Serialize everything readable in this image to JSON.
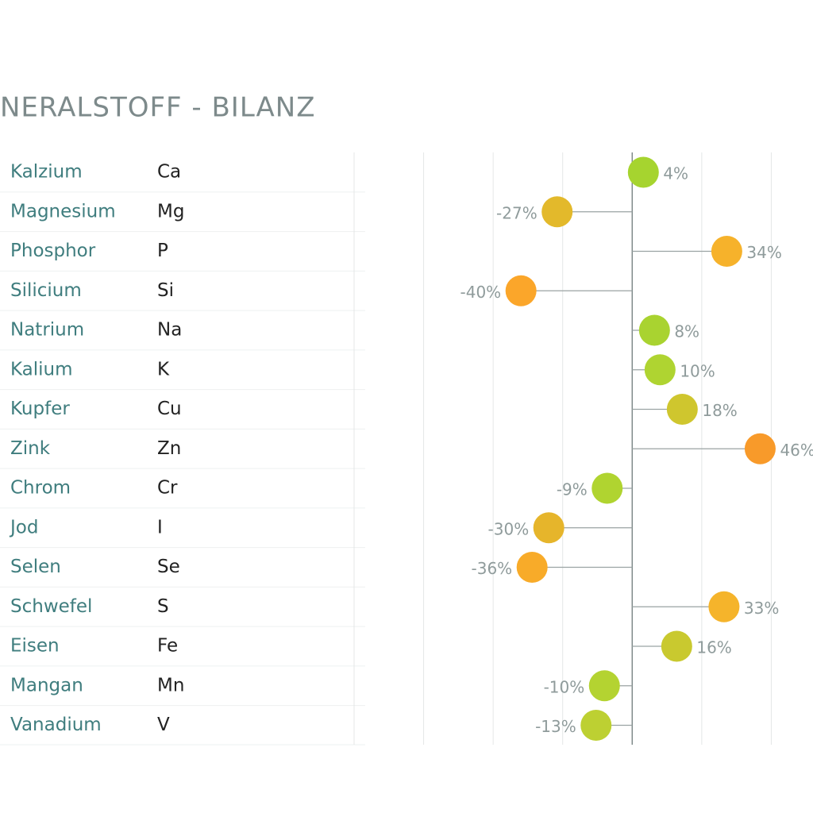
{
  "chart_data": {
    "type": "lollipop",
    "title": "NERALSTOFF - BILANZ",
    "categories": [
      "Kalzium",
      "Magnesium",
      "Phosphor",
      "Silicium",
      "Natrium",
      "Kalium",
      "Kupfer",
      "Zink",
      "Chrom",
      "Jod",
      "Selen",
      "Schwefel",
      "Eisen",
      "Mangan",
      "Vanadium"
    ],
    "symbols": [
      "Ca",
      "Mg",
      "P",
      "Si",
      "Na",
      "K",
      "Cu",
      "Zn",
      "Cr",
      "I",
      "Se",
      "S",
      "Fe",
      "Mn",
      "V"
    ],
    "values": [
      4,
      -27,
      34,
      -40,
      8,
      10,
      18,
      46,
      -9,
      -30,
      -36,
      33,
      16,
      -10,
      -13
    ],
    "value_labels": [
      "4%",
      "-27%",
      "34%",
      "-40%",
      "8%",
      "10%",
      "18%",
      "46%",
      "-9%",
      "-30%",
      "-36%",
      "33%",
      "16%",
      "-10%",
      "-13%"
    ],
    "colors": [
      "#a6d42f",
      "#e3b92b",
      "#f6b22b",
      "#fba62a",
      "#a9d330",
      "#afd431",
      "#cfc62e",
      "#f89a2a",
      "#b0d430",
      "#e6b52b",
      "#f8ab29",
      "#f5b42b",
      "#c9c92f",
      "#b4d331",
      "#bdd032"
    ],
    "xlim": [
      -100,
      65
    ],
    "xticks": [
      -100,
      -75,
      -50,
      -25,
      0,
      25,
      50
    ],
    "grid": true
  }
}
